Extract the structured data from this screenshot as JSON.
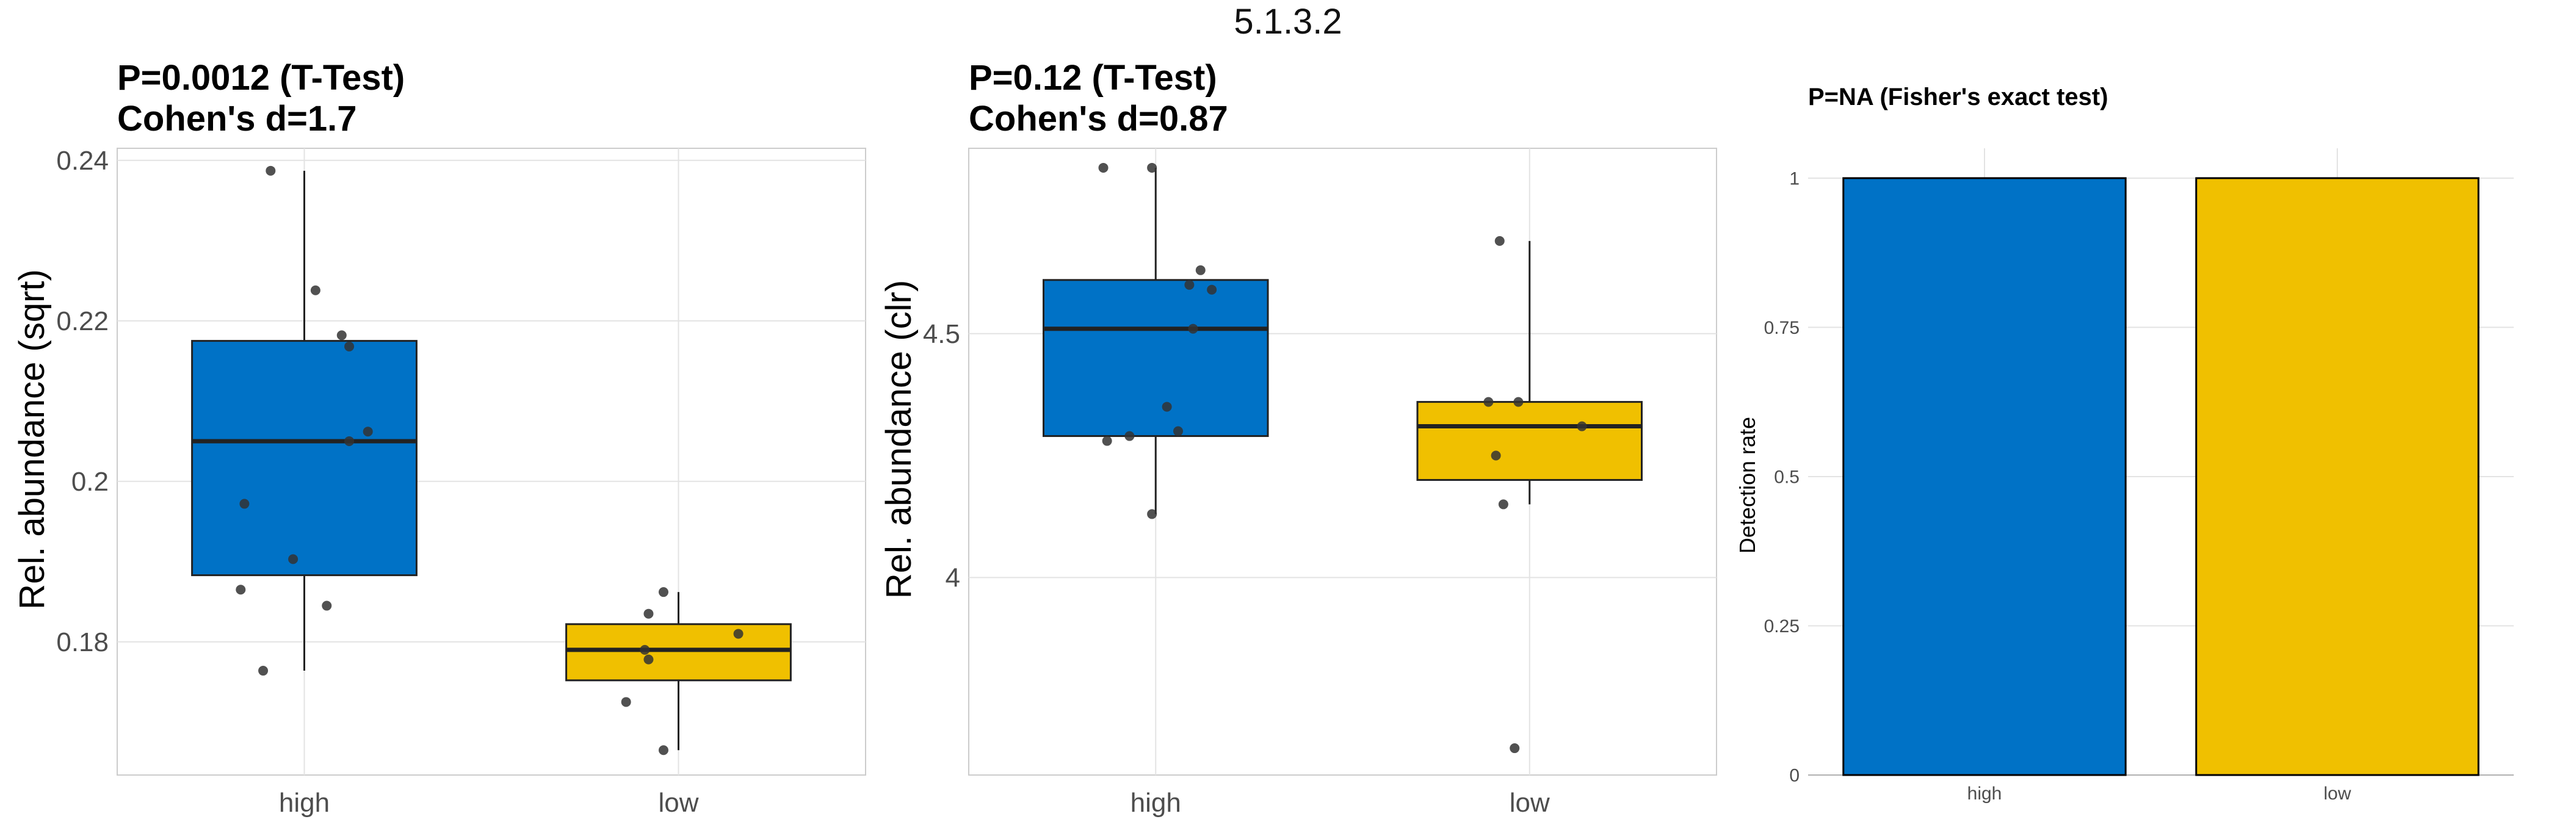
{
  "page": {
    "title": "5.1.3.2"
  },
  "colors": {
    "high": "#0072c6",
    "low": "#f0c000",
    "grid": "#e3e3e3",
    "border": "#cccccc"
  },
  "chart_data": [
    {
      "type": "box",
      "title_line1": "P=0.0012 (T-Test)",
      "title_line2": "Cohen's d=1.7",
      "ylabel": "Rel. abundance (sqrt)",
      "xlabel": "",
      "categories": [
        "high",
        "low"
      ],
      "ylim": [
        0.1634,
        0.2415
      ],
      "yticks": [
        0.18,
        0.2,
        0.22,
        0.24
      ],
      "ytick_labels": [
        "0.18",
        "0.2",
        "0.22",
        "0.24"
      ],
      "boxes": [
        {
          "group": "high",
          "min": 0.1764,
          "q1": 0.1883,
          "median": 0.205,
          "q3": 0.2175,
          "max": 0.2387,
          "points": [
            [
              -0.09,
              0.2387
            ],
            [
              0.03,
              0.2238
            ],
            [
              0.1,
              0.2182
            ],
            [
              0.12,
              0.2168
            ],
            [
              0.17,
              0.2062
            ],
            [
              0.12,
              0.205
            ],
            [
              -0.16,
              0.1972
            ],
            [
              -0.03,
              0.1903
            ],
            [
              -0.17,
              0.1865
            ],
            [
              0.06,
              0.1845
            ],
            [
              -0.11,
              0.1764
            ]
          ]
        },
        {
          "group": "low",
          "min": 0.1665,
          "q1": 0.1752,
          "median": 0.179,
          "q3": 0.1822,
          "max": 0.1862,
          "points": [
            [
              -0.04,
              0.1862
            ],
            [
              -0.08,
              0.1835
            ],
            [
              0.16,
              0.181
            ],
            [
              -0.09,
              0.179
            ],
            [
              -0.08,
              0.1778
            ],
            [
              -0.14,
              0.1725
            ],
            [
              -0.04,
              0.1665
            ]
          ]
        }
      ]
    },
    {
      "type": "box",
      "title_line1": "P=0.12 (T-Test)",
      "title_line2": "Cohen's d=0.87",
      "ylabel": "Rel. abundance (clr)",
      "xlabel": "",
      "categories": [
        "high",
        "low"
      ],
      "ylim": [
        3.595,
        4.88
      ],
      "yticks": [
        4,
        4.5
      ],
      "ytick_labels": [
        "4",
        "4.5"
      ],
      "boxes": [
        {
          "group": "high",
          "min": 4.13,
          "q1": 4.29,
          "median": 4.51,
          "q3": 4.61,
          "max": 4.84,
          "points": [
            [
              -0.14,
              4.84
            ],
            [
              -0.01,
              4.84
            ],
            [
              0.12,
              4.63
            ],
            [
              0.09,
              4.6
            ],
            [
              0.15,
              4.59
            ],
            [
              0.1,
              4.51
            ],
            [
              0.03,
              4.35
            ],
            [
              -0.07,
              4.29
            ],
            [
              0.06,
              4.3
            ],
            [
              -0.13,
              4.28
            ],
            [
              -0.01,
              4.13
            ]
          ]
        },
        {
          "group": "low",
          "min": 4.15,
          "q1": 4.2,
          "median": 4.31,
          "q3": 4.36,
          "max": 4.69,
          "points": [
            [
              -0.08,
              4.69
            ],
            [
              -0.11,
              4.36
            ],
            [
              -0.03,
              4.36
            ],
            [
              0.14,
              4.31
            ],
            [
              -0.09,
              4.25
            ],
            [
              -0.07,
              4.15
            ],
            [
              -0.04,
              3.65
            ]
          ]
        }
      ]
    },
    {
      "type": "bar",
      "title": "P=NA (Fisher's exact test)",
      "ylabel": "Detection rate",
      "xlabel": "",
      "categories": [
        "high",
        "low"
      ],
      "values": [
        1,
        1
      ],
      "ylim": [
        0,
        1.05
      ],
      "yticks": [
        0,
        0.25,
        0.5,
        0.75,
        1
      ],
      "ytick_labels": [
        "0",
        "0.25",
        "0.5",
        "0.75",
        "1"
      ]
    }
  ]
}
